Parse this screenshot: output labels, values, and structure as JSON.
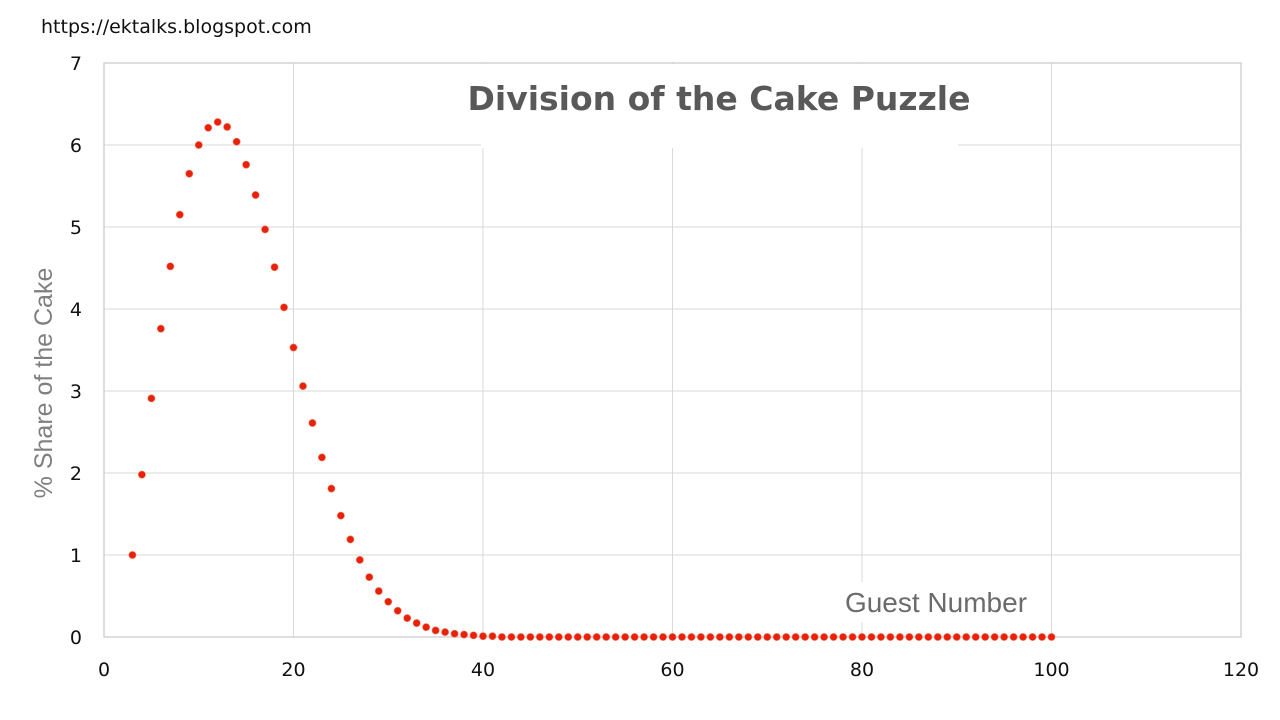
{
  "watermark": "https://ektalks.blogspot.com",
  "chart_data": {
    "type": "scatter",
    "title": "Division of the Cake Puzzle",
    "xlabel": "Guest Number",
    "ylabel": "% Share of the Cake",
    "xlim": [
      0,
      120
    ],
    "ylim": [
      0,
      7
    ],
    "x_ticks": [
      0,
      20,
      40,
      60,
      80,
      100,
      120
    ],
    "y_ticks": [
      0,
      1,
      2,
      3,
      4,
      5,
      6,
      7
    ],
    "grid": true,
    "legend": null,
    "marker_color": "#e8200c",
    "series": [
      {
        "name": "Share",
        "x": [
          3,
          4,
          5,
          6,
          7,
          8,
          9,
          10,
          11,
          12,
          13,
          14,
          15,
          16,
          17,
          18,
          19,
          20,
          21,
          22,
          23,
          24,
          25,
          26,
          27,
          28,
          29,
          30,
          31,
          32,
          33,
          34,
          35,
          36,
          37,
          38,
          39,
          40,
          41,
          42,
          43,
          44,
          45,
          46,
          47,
          48,
          49,
          50,
          51,
          52,
          53,
          54,
          55,
          56,
          57,
          58,
          59,
          60,
          61,
          62,
          63,
          64,
          65,
          66,
          67,
          68,
          69,
          70,
          71,
          72,
          73,
          74,
          75,
          76,
          77,
          78,
          79,
          80,
          81,
          82,
          83,
          84,
          85,
          86,
          87,
          88,
          89,
          90,
          91,
          92,
          93,
          94,
          95,
          96,
          97,
          98,
          99,
          100
        ],
        "values": [
          1.0,
          1.98,
          2.91,
          3.76,
          4.52,
          5.15,
          5.65,
          6.0,
          6.21,
          6.28,
          6.22,
          6.04,
          5.76,
          5.39,
          4.97,
          4.51,
          4.02,
          3.53,
          3.06,
          2.61,
          2.19,
          1.81,
          1.48,
          1.19,
          0.94,
          0.73,
          0.56,
          0.43,
          0.32,
          0.23,
          0.17,
          0.12,
          0.08,
          0.06,
          0.04,
          0.03,
          0.02,
          0.01,
          0.01,
          0.0,
          0.0,
          0.0,
          0.0,
          0.0,
          0.0,
          0.0,
          0.0,
          0.0,
          0.0,
          0.0,
          0.0,
          0.0,
          0.0,
          0.0,
          0.0,
          0.0,
          0.0,
          0.0,
          0.0,
          0.0,
          0.0,
          0.0,
          0.0,
          0.0,
          0.0,
          0.0,
          0.0,
          0.0,
          0.0,
          0.0,
          0.0,
          0.0,
          0.0,
          0.0,
          0.0,
          0.0,
          0.0,
          0.0,
          0.0,
          0.0,
          0.0,
          0.0,
          0.0,
          0.0,
          0.0,
          0.0,
          0.0,
          0.0,
          0.0,
          0.0,
          0.0,
          0.0,
          0.0,
          0.0,
          0.0,
          0.0,
          0.0,
          0.0
        ]
      }
    ]
  }
}
